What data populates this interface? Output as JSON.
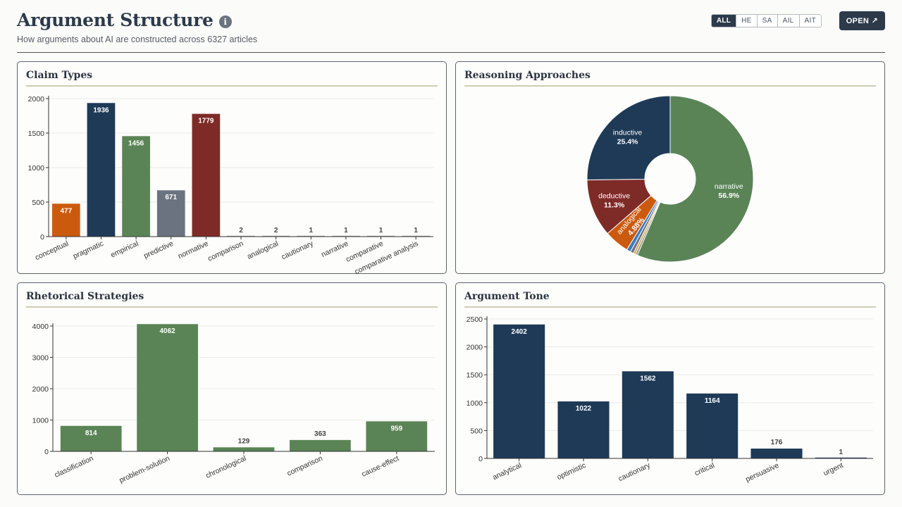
{
  "header": {
    "title": "Argument Structure",
    "info_icon": "i",
    "subtitle": "How arguments about AI are constructed across 6327 articles",
    "filters": [
      "ALL",
      "HE",
      "SA",
      "AIL",
      "AIT"
    ],
    "active_filter": "ALL",
    "open_label": "OPEN ↗"
  },
  "panels": {
    "claim": {
      "title": "Claim Types"
    },
    "reasoning": {
      "title": "Reasoning Approaches"
    },
    "rhetorical": {
      "title": "Rhetorical Strategies"
    },
    "tone": {
      "title": "Argument Tone"
    }
  },
  "chart_data": [
    {
      "id": "claim",
      "type": "bar",
      "title": "Claim Types",
      "categories": [
        "conceptual",
        "pragmatic",
        "empirical",
        "predictive",
        "normative",
        "comparison",
        "analogical",
        "cautionary",
        "narrative",
        "comparative",
        "comparative analysis"
      ],
      "values": [
        477,
        1936,
        1456,
        671,
        1779,
        2,
        2,
        1,
        1,
        1,
        1
      ],
      "colors": [
        "#cc5a0e",
        "#1e3a57",
        "#5a8456",
        "#6b7380",
        "#7e2b27",
        "#9ca3ab",
        "#9ca3ab",
        "#9ca3ab",
        "#9ca3ab",
        "#9ca3ab",
        "#9ca3ab"
      ],
      "yticks": [
        0,
        500,
        1000,
        1500,
        2000
      ],
      "ylim": [
        0,
        2000
      ],
      "grid": true
    },
    {
      "id": "reasoning",
      "type": "pie",
      "title": "Reasoning Approaches",
      "donut": true,
      "slices": [
        {
          "label": "narrative",
          "value": 56.9,
          "pct": "56.9%",
          "color": "#5a8456"
        },
        {
          "label": "",
          "value": 0.4,
          "pct": "",
          "color": "#8f8f6e"
        },
        {
          "label": "",
          "value": 0.45,
          "pct": "",
          "color": "#cfa35a"
        },
        {
          "label": "",
          "value": 0.65,
          "pct": "",
          "color": "#6b7380"
        },
        {
          "label": "",
          "value": 0.8,
          "pct": "",
          "color": "#3a7bc0"
        },
        {
          "label": "analogical",
          "value": 4.88,
          "pct": "4.88%",
          "color": "#cc5a0e"
        },
        {
          "label": "deductive",
          "value": 11.3,
          "pct": "11.3%",
          "color": "#7e2b27"
        },
        {
          "label": "inductive",
          "value": 25.4,
          "pct": "25.4%",
          "color": "#1e3a57"
        }
      ]
    },
    {
      "id": "rhetorical",
      "type": "bar",
      "title": "Rhetorical Strategies",
      "categories": [
        "classification",
        "problem-solution",
        "chronological",
        "comparison",
        "cause-effect"
      ],
      "values": [
        814,
        4062,
        129,
        363,
        959
      ],
      "colors": [
        "#5a8456",
        "#5a8456",
        "#5a8456",
        "#5a8456",
        "#5a8456"
      ],
      "yticks": [
        0,
        1000,
        2000,
        3000,
        4000
      ],
      "ylim": [
        0,
        4000
      ],
      "grid": true
    },
    {
      "id": "tone",
      "type": "bar",
      "title": "Argument Tone",
      "categories": [
        "analytical",
        "optimistic",
        "cautionary",
        "critical",
        "persuasive",
        "urgent"
      ],
      "values": [
        2402,
        1022,
        1562,
        1164,
        176,
        1
      ],
      "colors": [
        "#1e3a57",
        "#1e3a57",
        "#1e3a57",
        "#1e3a57",
        "#1e3a57",
        "#1e3a57"
      ],
      "yticks": [
        0,
        500,
        1000,
        1500,
        2000,
        2500
      ],
      "ylim": [
        0,
        2500
      ],
      "grid": true
    }
  ]
}
